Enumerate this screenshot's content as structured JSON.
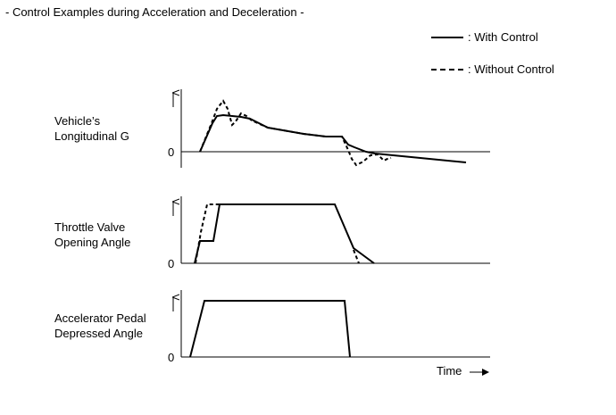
{
  "title": "- Control Examples during Acceleration and Deceleration -",
  "legend": {
    "with_control": ": With Control",
    "without_control": ": Without Control"
  },
  "panels": [
    {
      "label_line1": "Vehicle’s",
      "label_line2": "Longitudinal G",
      "zero": "0"
    },
    {
      "label_line1": "Throttle Valve",
      "label_line2": "Opening Angle",
      "zero": "0"
    },
    {
      "label_line1": "Accelerator Pedal",
      "label_line2": "Depressed Angle",
      "zero": "0"
    }
  ],
  "x_axis_label": "Time"
}
